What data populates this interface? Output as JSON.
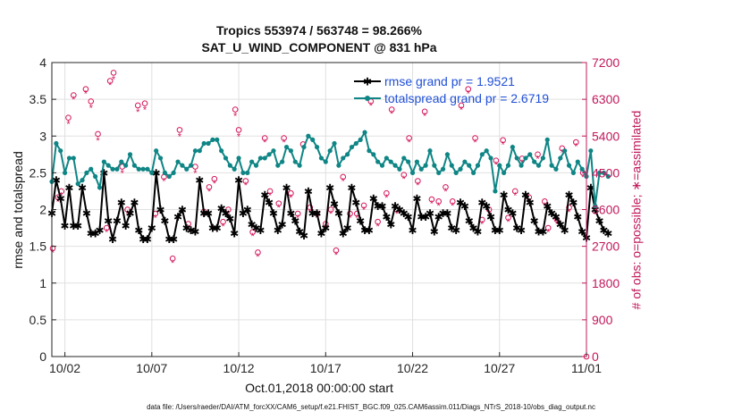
{
  "chart_data": {
    "type": "line",
    "title": "Tropics 553974 / 563748 = 98.266%",
    "subtitle": "SAT_U_WIND_COMPONENT @ 831 hPa",
    "xlabel": "Oct.01,2018 00:00:00 start",
    "ylabel": "rmse and totalspread",
    "y2label": "# of obs: o=possible; ∗=assimilated",
    "footnote": "data file: /Users/raeder/DAI/ATM_forcXX/CAM6_setup/f.e21.FHIST_BGC.f09_025.CAM6assim.011/Diags_NTrS_2018-10/obs_diag_output.nc",
    "x_tick_labels": [
      "10/02",
      "10/07",
      "10/12",
      "10/17",
      "10/22",
      "10/27",
      "11/01"
    ],
    "x_tick_days": [
      1,
      6,
      11,
      16,
      21,
      26,
      31
    ],
    "xlim": [
      0.25,
      31
    ],
    "ylim": [
      0,
      4
    ],
    "y_ticks": [
      "0",
      "0.5",
      "1",
      "1.5",
      "2",
      "2.5",
      "3",
      "3.5",
      "4"
    ],
    "y2lim": [
      0,
      7200
    ],
    "y2_ticks": [
      "0",
      "900",
      "1800",
      "2700",
      "3600",
      "4500",
      "5400",
      "6300",
      "7200"
    ],
    "legend_position": "top-right",
    "series_step_days": 0.25,
    "series_start_day": 0.25,
    "series": [
      {
        "name": "rmse grand pr = 1.9521",
        "color": "#000000",
        "values": [
          1.95,
          2.4,
          2.15,
          1.78,
          2.3,
          1.78,
          1.78,
          2.3,
          1.95,
          1.68,
          1.68,
          1.72,
          2.5,
          1.85,
          1.6,
          1.85,
          2.1,
          1.78,
          1.95,
          2.1,
          1.72,
          1.6,
          1.6,
          1.75,
          2.5,
          2.0,
          1.85,
          1.6,
          1.6,
          1.9,
          2.0,
          1.75,
          1.72,
          1.7,
          2.4,
          1.95,
          1.95,
          1.75,
          1.75,
          2.02,
          1.95,
          1.88,
          1.68,
          2.4,
          1.95,
          2.0,
          1.8,
          1.75,
          1.72,
          2.2,
          2.1,
          1.95,
          1.72,
          1.8,
          2.3,
          1.95,
          1.85,
          1.7,
          1.65,
          2.25,
          1.95,
          1.95,
          1.68,
          1.75,
          2.3,
          2.08,
          1.95,
          1.68,
          1.75,
          2.3,
          2.1,
          1.85,
          1.72,
          1.72,
          2.15,
          2.05,
          2.05,
          1.9,
          1.8,
          2.05,
          2.0,
          1.95,
          1.9,
          1.72,
          2.15,
          1.9,
          1.9,
          1.95,
          1.7,
          1.9,
          1.95,
          1.95,
          1.75,
          1.72,
          2.1,
          2.05,
          1.85,
          1.75,
          1.7,
          2.1,
          2.05,
          1.9,
          1.72,
          1.72,
          2.2,
          2.0,
          1.95,
          1.75,
          1.72,
          2.2,
          2.1,
          1.85,
          1.7,
          1.7,
          2.05,
          1.95,
          1.9,
          1.8,
          1.72,
          2.2,
          2.1,
          1.9,
          1.7,
          1.62,
          2.3,
          2.0,
          1.85,
          1.72,
          1.68
        ]
      },
      {
        "name": "totalspread grand pr = 2.6719",
        "color": "#0f8585",
        "values": [
          2.38,
          2.9,
          2.8,
          2.5,
          2.7,
          2.7,
          2.35,
          2.4,
          2.5,
          2.55,
          2.45,
          2.3,
          2.65,
          2.6,
          2.55,
          2.55,
          2.65,
          2.6,
          2.75,
          2.6,
          2.55,
          2.55,
          2.55,
          2.5,
          2.8,
          2.7,
          2.5,
          2.45,
          2.5,
          2.65,
          2.6,
          2.55,
          2.6,
          2.8,
          2.8,
          2.9,
          2.9,
          2.95,
          2.95,
          2.8,
          2.7,
          2.6,
          2.55,
          2.7,
          2.5,
          2.5,
          2.65,
          2.6,
          2.7,
          2.7,
          2.75,
          2.8,
          2.6,
          2.65,
          2.85,
          2.8,
          2.65,
          2.6,
          2.85,
          3.0,
          2.95,
          2.85,
          2.7,
          2.65,
          2.8,
          2.9,
          2.6,
          2.7,
          2.75,
          2.85,
          2.9,
          2.95,
          3.05,
          2.8,
          2.75,
          2.65,
          2.6,
          2.7,
          2.65,
          2.6,
          2.55,
          2.7,
          2.65,
          2.5,
          2.65,
          2.55,
          2.6,
          2.8,
          2.6,
          2.5,
          2.55,
          2.75,
          2.6,
          2.5,
          2.55,
          2.65,
          2.6,
          2.5,
          2.6,
          2.75,
          2.8,
          2.7,
          2.25,
          2.6,
          2.5,
          2.6,
          2.85,
          2.7,
          2.6,
          2.7,
          2.75,
          2.65,
          2.6,
          2.7,
          2.95,
          2.6,
          2.55,
          2.7,
          2.8,
          2.6,
          2.5,
          2.65,
          2.55,
          2.45,
          2.8,
          2.05,
          2.5,
          2.5,
          2.45
        ]
      }
    ],
    "obs_possible": {
      "marker": "o",
      "color": "#d4145a",
      "points": [
        [
          0.3,
          2650
        ],
        [
          0.6,
          3900
        ],
        [
          0.8,
          4050
        ],
        [
          1.2,
          5850
        ],
        [
          1.5,
          6400
        ],
        [
          2.2,
          6550
        ],
        [
          2.5,
          6250
        ],
        [
          2.9,
          5450
        ],
        [
          3.4,
          3150
        ],
        [
          3.8,
          6950
        ],
        [
          3.6,
          6750
        ],
        [
          4.3,
          4650
        ],
        [
          4.6,
          3600
        ],
        [
          5.2,
          6150
        ],
        [
          5.6,
          6200
        ],
        [
          6.2,
          3500
        ],
        [
          6.7,
          4400
        ],
        [
          7.2,
          2400
        ],
        [
          7.6,
          5550
        ],
        [
          8.1,
          3250
        ],
        [
          8.5,
          4650
        ],
        [
          9.0,
          3550
        ],
        [
          9.3,
          4150
        ],
        [
          9.6,
          4350
        ],
        [
          10.1,
          3300
        ],
        [
          10.4,
          3600
        ],
        [
          10.8,
          6050
        ],
        [
          11.0,
          5550
        ],
        [
          11.4,
          4300
        ],
        [
          11.8,
          3050
        ],
        [
          12.1,
          2550
        ],
        [
          12.5,
          5350
        ],
        [
          12.8,
          4050
        ],
        [
          13.3,
          3750
        ],
        [
          13.6,
          5350
        ],
        [
          14.0,
          4000
        ],
        [
          14.4,
          3500
        ],
        [
          14.7,
          5200
        ],
        [
          15.1,
          3650
        ],
        [
          15.5,
          3500
        ],
        [
          16.0,
          3250
        ],
        [
          16.3,
          3600
        ],
        [
          16.6,
          2600
        ],
        [
          17.0,
          4400
        ],
        [
          17.4,
          3500
        ],
        [
          17.8,
          3500
        ],
        [
          18.2,
          3700
        ],
        [
          18.6,
          6250
        ],
        [
          19.0,
          3300
        ],
        [
          19.5,
          4000
        ],
        [
          19.8,
          6050
        ],
        [
          20.1,
          3600
        ],
        [
          20.5,
          4450
        ],
        [
          20.8,
          5350
        ],
        [
          21.3,
          4300
        ],
        [
          21.7,
          6000
        ],
        [
          22.1,
          3850
        ],
        [
          22.5,
          3800
        ],
        [
          22.9,
          4150
        ],
        [
          23.3,
          3800
        ],
        [
          23.8,
          6150
        ],
        [
          24.2,
          6550
        ],
        [
          24.6,
          5350
        ],
        [
          25.0,
          3350
        ],
        [
          25.4,
          3600
        ],
        [
          25.8,
          4800
        ],
        [
          26.2,
          5300
        ],
        [
          26.5,
          3400
        ],
        [
          26.9,
          4050
        ],
        [
          27.3,
          4850
        ],
        [
          27.7,
          3900
        ],
        [
          28.2,
          4950
        ],
        [
          28.6,
          3800
        ],
        [
          28.8,
          3150
        ],
        [
          29.3,
          3350
        ],
        [
          29.6,
          5100
        ],
        [
          30.0,
          3650
        ],
        [
          30.4,
          5250
        ],
        [
          30.8,
          4500
        ],
        [
          31.0,
          0
        ]
      ]
    },
    "obs_assimilated": {
      "marker": "*",
      "color": "#d4145a",
      "points": [
        [
          0.3,
          2550
        ],
        [
          0.6,
          3800
        ],
        [
          0.8,
          3950
        ],
        [
          1.2,
          5700
        ],
        [
          1.5,
          6300
        ],
        [
          2.2,
          6450
        ],
        [
          2.5,
          6100
        ],
        [
          2.9,
          5300
        ],
        [
          3.4,
          3050
        ],
        [
          3.8,
          6800
        ],
        [
          3.6,
          6650
        ],
        [
          4.3,
          4500
        ],
        [
          4.6,
          3500
        ],
        [
          5.2,
          6000
        ],
        [
          5.6,
          6050
        ],
        [
          6.2,
          3400
        ],
        [
          6.7,
          4300
        ],
        [
          7.2,
          2300
        ],
        [
          7.6,
          5400
        ],
        [
          8.1,
          3150
        ],
        [
          8.5,
          4500
        ],
        [
          9.0,
          3450
        ],
        [
          9.3,
          4050
        ],
        [
          9.6,
          4250
        ],
        [
          10.1,
          3200
        ],
        [
          10.4,
          3500
        ],
        [
          10.8,
          5900
        ],
        [
          11.0,
          5400
        ],
        [
          11.4,
          4200
        ],
        [
          11.8,
          2950
        ],
        [
          12.1,
          2450
        ],
        [
          12.5,
          5250
        ],
        [
          12.8,
          3950
        ],
        [
          13.3,
          3650
        ],
        [
          13.6,
          5250
        ],
        [
          14.0,
          3900
        ],
        [
          14.4,
          3400
        ],
        [
          14.7,
          5100
        ],
        [
          15.1,
          3550
        ],
        [
          15.5,
          3400
        ],
        [
          16.0,
          3150
        ],
        [
          16.3,
          3500
        ],
        [
          16.6,
          2500
        ],
        [
          17.0,
          4300
        ],
        [
          17.4,
          3400
        ],
        [
          17.8,
          3400
        ],
        [
          18.2,
          3600
        ],
        [
          18.6,
          6150
        ],
        [
          19.0,
          3200
        ],
        [
          19.5,
          3900
        ],
        [
          19.8,
          5950
        ],
        [
          20.1,
          3500
        ],
        [
          20.5,
          4350
        ],
        [
          20.8,
          5250
        ],
        [
          21.3,
          4200
        ],
        [
          21.7,
          5900
        ],
        [
          22.1,
          3750
        ],
        [
          22.5,
          3700
        ],
        [
          22.9,
          4050
        ],
        [
          23.3,
          3700
        ],
        [
          23.8,
          6050
        ],
        [
          24.2,
          6450
        ],
        [
          24.6,
          5250
        ],
        [
          25.0,
          3250
        ],
        [
          25.4,
          3500
        ],
        [
          25.8,
          4700
        ],
        [
          26.2,
          5200
        ],
        [
          26.5,
          3300
        ],
        [
          26.9,
          3950
        ],
        [
          27.3,
          4750
        ],
        [
          27.7,
          3800
        ],
        [
          28.2,
          4850
        ],
        [
          28.6,
          3700
        ],
        [
          28.8,
          3050
        ],
        [
          29.3,
          3250
        ],
        [
          29.6,
          5000
        ],
        [
          30.0,
          3550
        ],
        [
          30.4,
          5150
        ],
        [
          30.8,
          4400
        ]
      ]
    }
  }
}
